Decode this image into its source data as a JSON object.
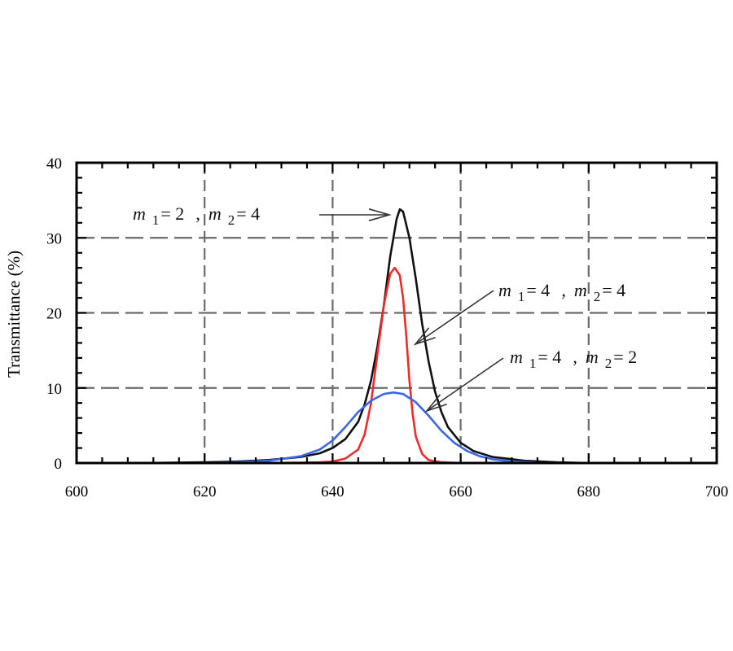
{
  "chart_data": {
    "type": "line",
    "title": "",
    "xlabel": "",
    "ylabel": "Transmittance (%)",
    "xlim": [
      600,
      700
    ],
    "ylim": [
      0,
      40
    ],
    "grid": true,
    "x_ticks": [
      600,
      620,
      640,
      660,
      680,
      700
    ],
    "y_ticks": [
      0,
      10,
      20,
      30,
      40
    ],
    "x_tick_labels": [
      "600",
      "620",
      "640",
      "660",
      "680",
      "700"
    ],
    "y_tick_labels": [
      "0",
      "10",
      "20",
      "30",
      "40"
    ],
    "series": [
      {
        "color": "#111111",
        "x": [
          600,
          610,
          620,
          625,
          630,
          635,
          638,
          640,
          642,
          644,
          645,
          646,
          647,
          648,
          649,
          650,
          650.5,
          651,
          652,
          653,
          654,
          655,
          656,
          657,
          658,
          660,
          662,
          665,
          670,
          675,
          680,
          690,
          700
        ],
        "y": [
          0,
          0,
          0.1,
          0.2,
          0.4,
          0.8,
          1.3,
          2.0,
          3.2,
          5.5,
          7.8,
          11.0,
          15.5,
          21.0,
          27.5,
          32.5,
          33.8,
          33.5,
          30.0,
          24.5,
          18.5,
          13.5,
          9.5,
          6.8,
          4.8,
          2.7,
          1.6,
          0.8,
          0.3,
          0.1,
          0,
          0,
          0
        ]
      },
      {
        "color": "#ee2b2b",
        "x": [
          600,
          620,
          630,
          635,
          638,
          640,
          642,
          644,
          645,
          646,
          647,
          648,
          649,
          649.7,
          650.5,
          651,
          651.5,
          652,
          652.5,
          653,
          654,
          655,
          657,
          660,
          670,
          700
        ],
        "y": [
          0,
          0,
          0,
          0.05,
          0.1,
          0.2,
          0.6,
          1.8,
          3.8,
          8.0,
          14.5,
          21.0,
          25.2,
          26.0,
          25.0,
          22.0,
          17.0,
          11.0,
          6.5,
          3.5,
          1.2,
          0.4,
          0.1,
          0,
          0,
          0
        ]
      },
      {
        "color": "#3a66e8",
        "x": [
          600,
          620,
          625,
          630,
          635,
          638,
          640,
          642,
          644,
          646,
          648,
          649.5,
          651,
          653,
          655,
          657,
          659,
          661,
          663,
          665,
          668,
          672,
          680,
          700
        ],
        "y": [
          0,
          0,
          0.1,
          0.3,
          0.9,
          1.8,
          3.0,
          4.8,
          6.8,
          8.3,
          9.2,
          9.4,
          9.2,
          8.1,
          6.3,
          4.3,
          2.7,
          1.6,
          0.9,
          0.5,
          0.2,
          0.05,
          0,
          0
        ]
      }
    ],
    "annotations": [
      {
        "m1": "2",
        "m2": "4",
        "series_index": 0
      },
      {
        "m1": "4",
        "m2": "4",
        "series_index": 0
      },
      {
        "m1": "4",
        "m2": "2",
        "series_index": 2
      }
    ]
  },
  "labels": {
    "m": "m",
    "sub1": "1",
    "sub2": "2",
    "eq": "=",
    "sep": ","
  }
}
